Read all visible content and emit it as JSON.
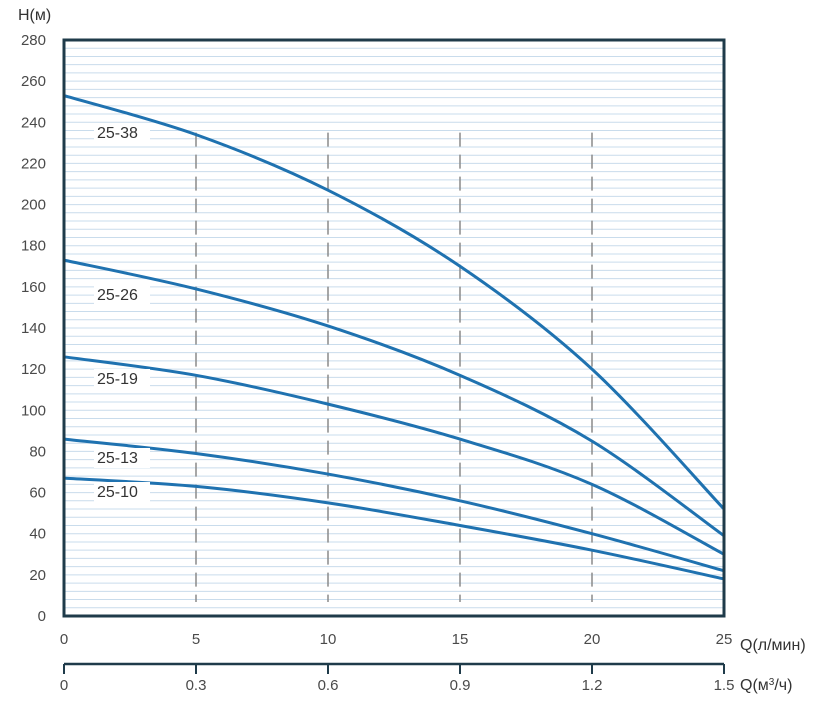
{
  "chart_data": {
    "type": "line",
    "ylabel": "H(м)",
    "xlabel": "Q(л/мин)",
    "x2label_prefix": "Q(м",
    "x2label_sup": "3",
    "x2label_suffix": "/ч)",
    "xlim": [
      0,
      25
    ],
    "ylim": [
      0,
      280
    ],
    "y_ticks": [
      "0",
      "20",
      "40",
      "60",
      "80",
      "100",
      "120",
      "140",
      "160",
      "180",
      "200",
      "220",
      "240",
      "260",
      "280"
    ],
    "x_ticks": [
      "0",
      "5",
      "10",
      "15",
      "20",
      "25"
    ],
    "x2_ticks": [
      "0",
      "0.3",
      "0.6",
      "0.9",
      "1.2",
      "1.5"
    ],
    "x_tick_values": [
      0,
      5,
      10,
      15,
      20,
      25
    ],
    "reference_lines_x": [
      5,
      10,
      15,
      20
    ],
    "grid": "horizontal",
    "x": [
      0,
      5,
      10,
      15,
      20,
      25
    ],
    "series": [
      {
        "name": "25-38",
        "values": [
          253,
          234,
          207,
          170,
          120,
          52
        ]
      },
      {
        "name": "25-26",
        "values": [
          173,
          159,
          141,
          117,
          85,
          39
        ]
      },
      {
        "name": "25-19",
        "values": [
          126,
          117,
          103,
          86,
          64,
          30
        ]
      },
      {
        "name": "25-13",
        "values": [
          86,
          79,
          69,
          56,
          40,
          22
        ]
      },
      {
        "name": "25-10",
        "values": [
          67,
          63,
          55,
          44,
          32,
          18
        ]
      }
    ],
    "colors": {
      "curve": "#1f72b0",
      "frame": "#1f3b4a",
      "grid": "#c9dcec",
      "reference": "#8a8a8a"
    }
  }
}
